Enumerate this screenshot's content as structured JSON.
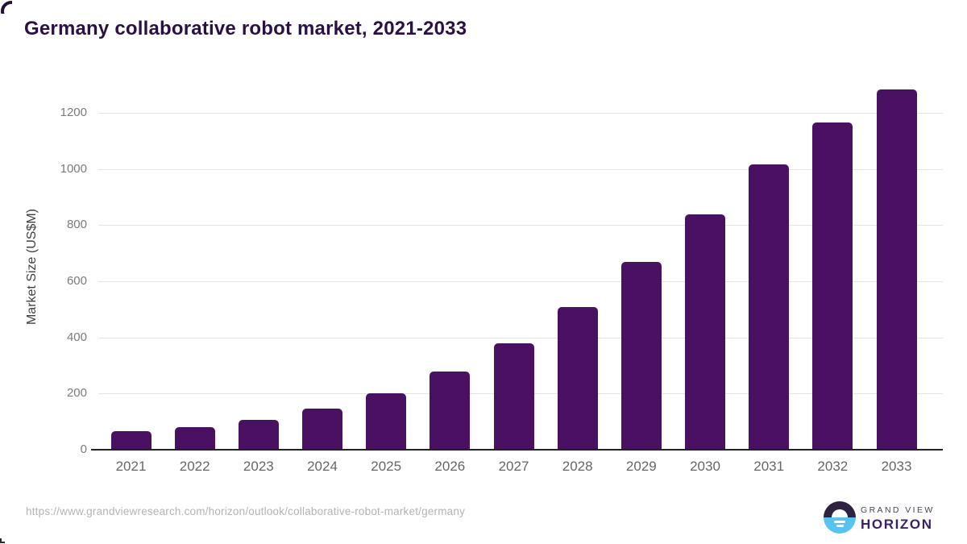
{
  "header": {
    "title": "Germany collaborative robot market, 2021-2033"
  },
  "chart_data": {
    "type": "bar",
    "title": "Germany collaborative robot market, 2021-2033",
    "categories": [
      "2021",
      "2022",
      "2023",
      "2024",
      "2025",
      "2026",
      "2027",
      "2028",
      "2029",
      "2030",
      "2031",
      "2032",
      "2033"
    ],
    "values": [
      65,
      80,
      105,
      145,
      200,
      278,
      380,
      507,
      668,
      838,
      1015,
      1165,
      1283
    ],
    "xlabel": "",
    "ylabel": "Market Size (US$M)",
    "ylim": [
      0,
      1300
    ],
    "yticks": [
      0,
      200,
      400,
      600,
      800,
      1000,
      1200
    ],
    "grid": "horizontal",
    "legend": "none",
    "bar_color": "#4a1162"
  },
  "colors": {
    "title": "#2a1045",
    "bar": "#4a1162",
    "axis_line": "#222222",
    "grid_line": "#e4e4e4",
    "y_tick_label": "#7a7a7a",
    "x_tick_label": "#666666",
    "footer_url": "#b3b3b3",
    "logo_dark": "#2f2140",
    "logo_blue": "#58c3ee"
  },
  "footer": {
    "url": "https://www.grandviewresearch.com/horizon/outlook/collaborative-robot-market/germany",
    "logo": {
      "brand_top": "GRAND VIEW",
      "brand_bottom": "HORIZON"
    }
  }
}
